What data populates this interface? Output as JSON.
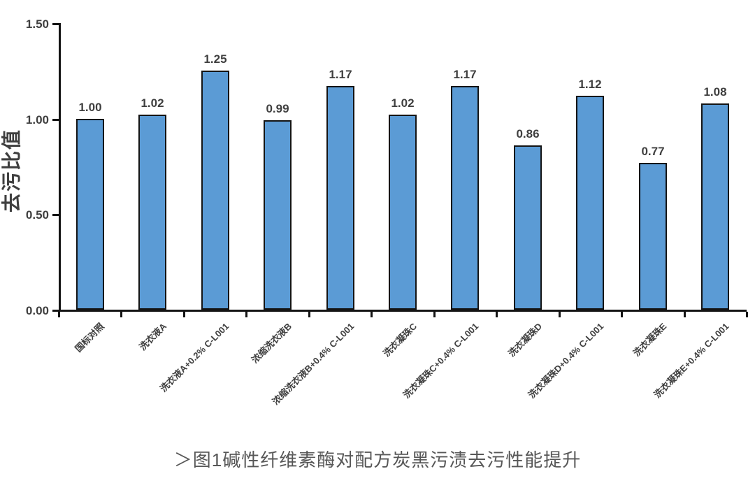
{
  "figure": {
    "caption": "＞图1碱性纤维素酶对配方炭黑污渍去污性能提升"
  },
  "chart_data": {
    "type": "bar",
    "title": "",
    "xlabel": "",
    "ylabel": "去污比值",
    "categories": [
      "国标对照",
      "洗衣液A",
      "洗衣液A+0.2% C-L001",
      "浓缩洗衣液B",
      "浓缩洗衣液B+0.4% C-L001",
      "洗衣凝珠C",
      "洗衣凝珠C+0.4% C-L001",
      "洗衣凝珠D",
      "洗衣凝珠D+0.4% C-L001",
      "洗衣凝珠E",
      "洗衣凝珠E+0.4% C-L001"
    ],
    "values": [
      1.0,
      1.02,
      1.25,
      0.99,
      1.17,
      1.02,
      1.17,
      0.86,
      1.12,
      0.77,
      1.08
    ],
    "data_labels": [
      "1.00",
      "1.02",
      "1.25",
      "0.99",
      "1.17",
      "1.02",
      "1.17",
      "0.86",
      "1.12",
      "0.77",
      "1.08"
    ],
    "ytick_values": [
      0,
      0.5,
      1.0,
      1.5
    ],
    "ytick_labels": [
      "0.00",
      "0.50",
      "1.00",
      "1.50"
    ],
    "ylim": [
      0,
      1.5
    ],
    "grid": false,
    "legend": "none",
    "colors": {
      "bar_fill": "#5B9BD5",
      "bar_border": "#141414",
      "axis": "#141414",
      "labels": "#3f3f3f",
      "caption": "#575757"
    }
  }
}
